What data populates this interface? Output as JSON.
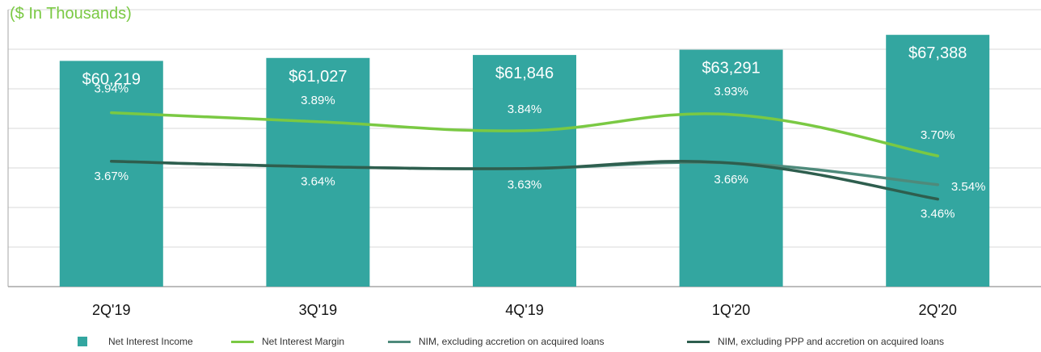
{
  "subtitle": "($ In Thousands)",
  "colors": {
    "bar": "#33a6a0",
    "nim": "#7ac943",
    "nim_ex_accretion": "#4e8a7b",
    "nim_ex_ppp": "#2e5e4e",
    "subtitle": "#7ac943",
    "grid": "#d9d9d9"
  },
  "legend": [
    {
      "label": "Net Interest Income",
      "kind": "box",
      "color": "#33a6a0"
    },
    {
      "label": "Net Interest Margin",
      "kind": "line",
      "color": "#7ac943"
    },
    {
      "label": "NIM, excluding accretion on acquired loans",
      "kind": "line",
      "color": "#4e8a7b"
    },
    {
      "label": "NIM, excluding PPP and accretion on acquired loans",
      "kind": "line",
      "color": "#2e5e4e"
    }
  ],
  "chart_data": {
    "type": "bar",
    "title": "",
    "subtitle": "($ In Thousands)",
    "categories": [
      "2Q'19",
      "3Q'19",
      "4Q'19",
      "1Q'20",
      "2Q'20"
    ],
    "bars": {
      "name": "Net Interest Income",
      "values": [
        60219,
        61027,
        61846,
        63291,
        67388
      ],
      "labels": [
        "$60,219",
        "$61,027",
        "$61,846",
        "$63,291",
        "$67,388"
      ]
    },
    "series": [
      {
        "name": "Net Interest Margin",
        "type": "line",
        "values": [
          3.94,
          3.89,
          3.84,
          3.93,
          3.7
        ],
        "labels": [
          "3.94%",
          "3.89%",
          "3.84%",
          "3.93%",
          "3.70%"
        ]
      },
      {
        "name": "NIM, excluding accretion on acquired loans",
        "type": "line",
        "values": [
          3.67,
          3.64,
          3.63,
          3.66,
          3.54
        ],
        "labels": [
          "",
          "",
          "",
          "",
          "3.54%"
        ]
      },
      {
        "name": "NIM, excluding PPP and accretion on acquired loans",
        "type": "line",
        "values": [
          3.67,
          3.64,
          3.63,
          3.66,
          3.46
        ],
        "labels": [
          "3.67%",
          "3.64%",
          "3.63%",
          "3.66%",
          "3.46%"
        ]
      }
    ],
    "grid": true,
    "legend_position": "bottom"
  }
}
